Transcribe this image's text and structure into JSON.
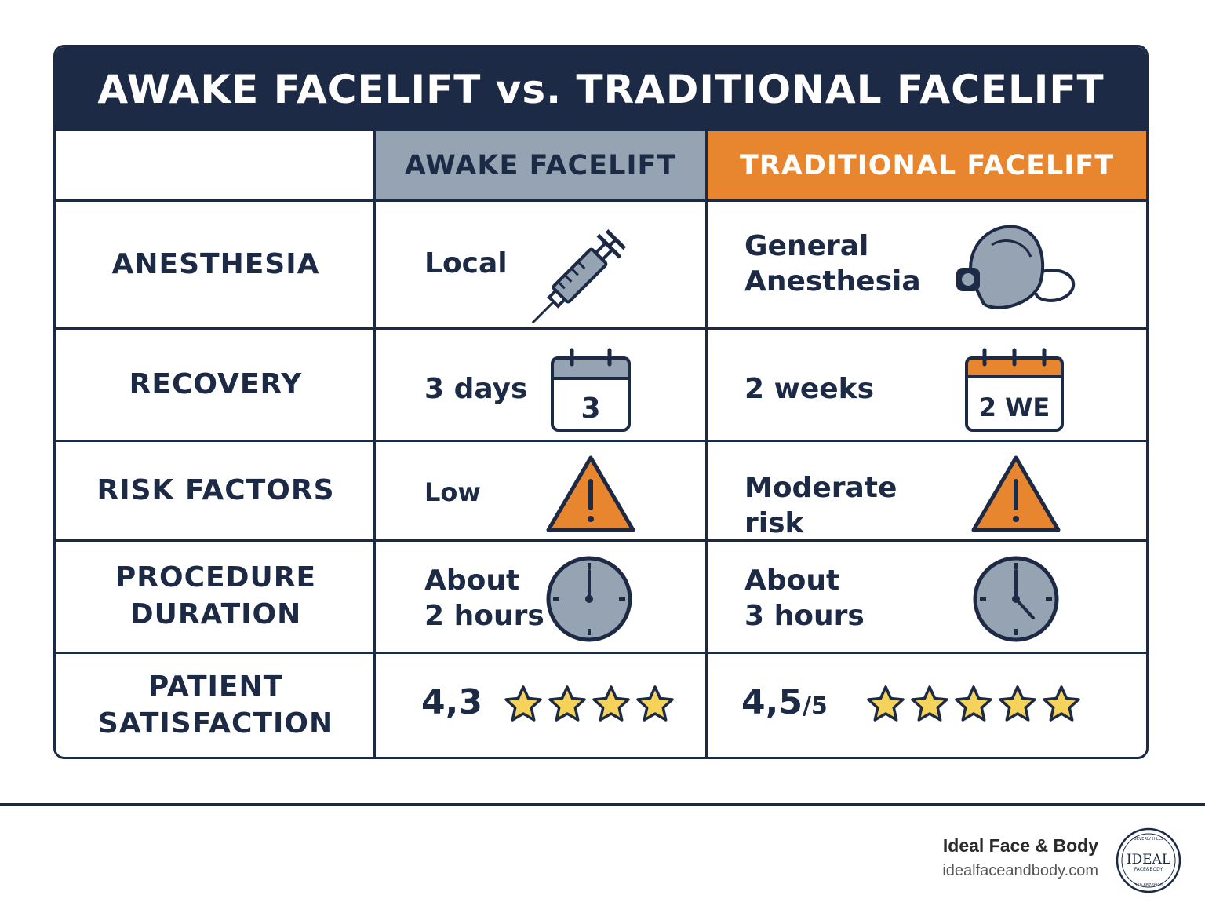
{
  "title": "AWAKE FACELIFT vs. TRADITIONAL FACELIFT",
  "columns": {
    "awake": "AWAKE FACELIFT",
    "traditional": "TRADITIONAL FACELIFT"
  },
  "rows": [
    {
      "label": "ANESTHESIA",
      "awake": "Local",
      "traditional_l1": "General",
      "traditional_l2": "Anesthesia",
      "awake_icon": "syringe-icon",
      "traditional_icon": "anesthesia-mask-icon"
    },
    {
      "label": "RECOVERY",
      "awake": "3 days",
      "traditional": "2 weeks",
      "awake_icon": "calendar-icon",
      "traditional_icon": "calendar-icon",
      "awake_calendar_text": "3",
      "traditional_calendar_text": "2 WE"
    },
    {
      "label": "RISK FACTORS",
      "awake": "Low",
      "traditional_l1": "Moderate",
      "traditional_l2": "risk",
      "awake_icon": "warning-icon",
      "traditional_icon": "warning-icon"
    },
    {
      "label_l1": "PROCEDURE",
      "label_l2": "DURATION",
      "awake_l1": "About",
      "awake_l2": "2 hours",
      "traditional_l1": "About",
      "traditional_l2": "3 hours",
      "awake_icon": "clock-icon",
      "traditional_icon": "clock-icon"
    },
    {
      "label_l1": "PATIENT",
      "label_l2": "SATISFACTION",
      "awake": "4,3",
      "awake_rating": 4,
      "traditional": "4,5",
      "traditional_suffix": "/5",
      "traditional_rating": 5
    }
  ],
  "colors": {
    "navy": "#1c2a45",
    "slate": "#95a3b3",
    "orange": "#e8862f",
    "star": "#f5d25a"
  },
  "footer": {
    "brand": "Ideal Face & Body",
    "url": "idealfaceandbody.com",
    "logo_text": "IDEAL",
    "logo_sub": "FACE&BODY",
    "logo_top": "BEVERLY HILLS",
    "logo_bottom": "310-887-9990"
  }
}
